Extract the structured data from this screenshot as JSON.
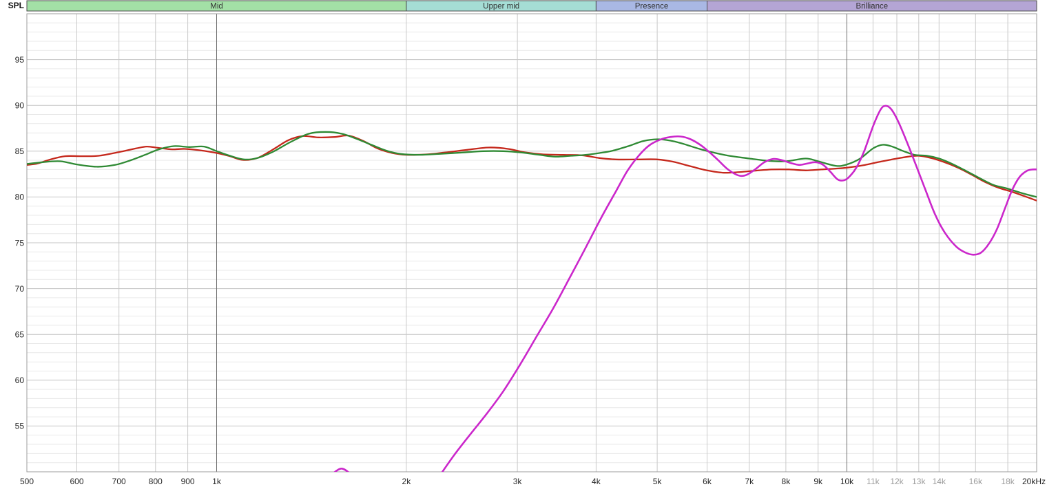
{
  "chart": {
    "spl_label": "SPL"
  },
  "colors": {
    "grid_minor": "#e9e9e9",
    "grid_major": "#c4c4c4",
    "grid_vertical": "#c9c9c9",
    "grid_strong": "#6b6b6b",
    "plot_border": "#9c9c9c",
    "tick_text": "#262626",
    "tick_text_muted": "#9b9b9b",
    "band_border": "#4d4d4d",
    "band_text": "#333333"
  },
  "chart_data": {
    "type": "line",
    "ylabel": "SPL",
    "x_unit": "Hz",
    "x_scale": "log",
    "xlim": [
      500,
      20000
    ],
    "ylim": [
      50,
      100
    ],
    "y_major_step": 5,
    "y_minor_step": 1,
    "grid": true,
    "legend_position": "none",
    "y_tick_labels": [
      55,
      60,
      65,
      70,
      75,
      80,
      85,
      90,
      95
    ],
    "x_ticks": [
      {
        "f": 500,
        "label": "500",
        "muted": false,
        "strong": false
      },
      {
        "f": 600,
        "label": "600",
        "muted": false,
        "strong": false
      },
      {
        "f": 700,
        "label": "700",
        "muted": false,
        "strong": false
      },
      {
        "f": 800,
        "label": "800",
        "muted": false,
        "strong": false
      },
      {
        "f": 900,
        "label": "900",
        "muted": false,
        "strong": false
      },
      {
        "f": 1000,
        "label": "1k",
        "muted": false,
        "strong": true
      },
      {
        "f": 2000,
        "label": "2k",
        "muted": false,
        "strong": false
      },
      {
        "f": 3000,
        "label": "3k",
        "muted": false,
        "strong": false
      },
      {
        "f": 4000,
        "label": "4k",
        "muted": false,
        "strong": false
      },
      {
        "f": 5000,
        "label": "5k",
        "muted": false,
        "strong": false
      },
      {
        "f": 6000,
        "label": "6k",
        "muted": false,
        "strong": false
      },
      {
        "f": 7000,
        "label": "7k",
        "muted": false,
        "strong": false
      },
      {
        "f": 8000,
        "label": "8k",
        "muted": false,
        "strong": false
      },
      {
        "f": 9000,
        "label": "9k",
        "muted": false,
        "strong": false
      },
      {
        "f": 10000,
        "label": "10k",
        "muted": false,
        "strong": true
      },
      {
        "f": 11000,
        "label": "11k",
        "muted": true,
        "strong": false
      },
      {
        "f": 12000,
        "label": "12k",
        "muted": true,
        "strong": false
      },
      {
        "f": 13000,
        "label": "13k",
        "muted": true,
        "strong": false
      },
      {
        "f": 14000,
        "label": "14k",
        "muted": true,
        "strong": false
      },
      {
        "f": 16000,
        "label": "16k",
        "muted": true,
        "strong": false
      },
      {
        "f": 18000,
        "label": "18k",
        "muted": true,
        "strong": false
      },
      {
        "f": 20000,
        "label": "20kHz",
        "muted": false,
        "strong": false
      }
    ],
    "bands": [
      {
        "label": "Mid",
        "from": 500,
        "to": 2000,
        "color": "#a3e0a6"
      },
      {
        "label": "Upper mid",
        "from": 2000,
        "to": 4000,
        "color": "#a5ddd5"
      },
      {
        "label": "Presence",
        "from": 4000,
        "to": 6000,
        "color": "#a9b8e4"
      },
      {
        "label": "Brilliance",
        "from": 6000,
        "to": 20000,
        "color": "#b4a5d5"
      }
    ],
    "series": [
      {
        "name": "red",
        "color": "#c5281c",
        "width": 2.3,
        "segments": [
          [
            [
              500,
              83.5
            ],
            [
              520,
              83.65
            ],
            [
              545,
              84.1
            ],
            [
              575,
              84.45
            ],
            [
              610,
              84.45
            ],
            [
              650,
              84.5
            ],
            [
              700,
              84.9
            ],
            [
              745,
              85.3
            ],
            [
              775,
              85.5
            ],
            [
              810,
              85.35
            ],
            [
              850,
              85.2
            ],
            [
              890,
              85.25
            ],
            [
              940,
              85.1
            ],
            [
              1000,
              84.8
            ],
            [
              1050,
              84.45
            ],
            [
              1100,
              84.05
            ],
            [
              1160,
              84.25
            ],
            [
              1230,
              85.2
            ],
            [
              1300,
              86.2
            ],
            [
              1370,
              86.65
            ],
            [
              1450,
              86.5
            ],
            [
              1540,
              86.55
            ],
            [
              1620,
              86.7
            ],
            [
              1710,
              86.1
            ],
            [
              1800,
              85.3
            ],
            [
              1900,
              84.8
            ],
            [
              2000,
              84.6
            ],
            [
              2150,
              84.65
            ],
            [
              2300,
              84.85
            ],
            [
              2500,
              85.15
            ],
            [
              2700,
              85.4
            ],
            [
              2900,
              85.25
            ],
            [
              3100,
              84.85
            ],
            [
              3300,
              84.65
            ],
            [
              3550,
              84.6
            ],
            [
              3800,
              84.55
            ],
            [
              4050,
              84.25
            ],
            [
              4300,
              84.1
            ],
            [
              4650,
              84.1
            ],
            [
              5000,
              84.1
            ],
            [
              5300,
              83.85
            ],
            [
              5650,
              83.35
            ],
            [
              6000,
              82.9
            ],
            [
              6350,
              82.65
            ],
            [
              6700,
              82.7
            ],
            [
              7100,
              82.85
            ],
            [
              7600,
              83.0
            ],
            [
              8100,
              83.0
            ],
            [
              8600,
              82.9
            ],
            [
              9100,
              83.0
            ],
            [
              9600,
              83.1
            ],
            [
              10000,
              83.2
            ],
            [
              10600,
              83.45
            ],
            [
              11200,
              83.8
            ],
            [
              11900,
              84.15
            ],
            [
              12500,
              84.4
            ],
            [
              13000,
              84.5
            ],
            [
              13600,
              84.25
            ],
            [
              14200,
              83.85
            ],
            [
              15000,
              83.2
            ],
            [
              15800,
              82.4
            ],
            [
              16600,
              81.6
            ],
            [
              17400,
              81.0
            ],
            [
              18200,
              80.6
            ],
            [
              19100,
              80.1
            ],
            [
              20000,
              79.6
            ]
          ]
        ]
      },
      {
        "name": "green",
        "color": "#2f8a34",
        "width": 2.3,
        "segments": [
          [
            [
              500,
              83.6
            ],
            [
              530,
              83.8
            ],
            [
              565,
              83.9
            ],
            [
              600,
              83.55
            ],
            [
              645,
              83.3
            ],
            [
              690,
              83.5
            ],
            [
              730,
              84.0
            ],
            [
              770,
              84.6
            ],
            [
              810,
              85.2
            ],
            [
              855,
              85.55
            ],
            [
              905,
              85.45
            ],
            [
              955,
              85.5
            ],
            [
              1000,
              85.0
            ],
            [
              1050,
              84.5
            ],
            [
              1105,
              84.1
            ],
            [
              1160,
              84.25
            ],
            [
              1230,
              84.95
            ],
            [
              1310,
              86.0
            ],
            [
              1400,
              86.9
            ],
            [
              1490,
              87.1
            ],
            [
              1580,
              86.9
            ],
            [
              1660,
              86.4
            ],
            [
              1760,
              85.7
            ],
            [
              1860,
              85.05
            ],
            [
              1960,
              84.7
            ],
            [
              2100,
              84.6
            ],
            [
              2250,
              84.7
            ],
            [
              2450,
              84.85
            ],
            [
              2650,
              85.0
            ],
            [
              2850,
              85.0
            ],
            [
              3050,
              84.85
            ],
            [
              3250,
              84.6
            ],
            [
              3450,
              84.4
            ],
            [
              3650,
              84.5
            ],
            [
              3850,
              84.6
            ],
            [
              4050,
              84.8
            ],
            [
              4250,
              85.05
            ],
            [
              4500,
              85.55
            ],
            [
              4750,
              86.1
            ],
            [
              5000,
              86.3
            ],
            [
              5250,
              86.15
            ],
            [
              5500,
              85.8
            ],
            [
              5800,
              85.3
            ],
            [
              6100,
              84.9
            ],
            [
              6500,
              84.5
            ],
            [
              7000,
              84.2
            ],
            [
              7500,
              83.95
            ],
            [
              8000,
              83.9
            ],
            [
              8600,
              84.2
            ],
            [
              9000,
              83.9
            ],
            [
              9600,
              83.4
            ],
            [
              10000,
              83.55
            ],
            [
              10500,
              84.2
            ],
            [
              11000,
              85.3
            ],
            [
              11400,
              85.7
            ],
            [
              11800,
              85.5
            ],
            [
              12300,
              85.0
            ],
            [
              12800,
              84.6
            ],
            [
              13400,
              84.5
            ],
            [
              14000,
              84.2
            ],
            [
              14700,
              83.6
            ],
            [
              15500,
              82.8
            ],
            [
              16300,
              82.0
            ],
            [
              17100,
              81.3
            ],
            [
              18000,
              80.9
            ],
            [
              19000,
              80.4
            ],
            [
              20000,
              80.0
            ]
          ]
        ]
      },
      {
        "name": "magenta",
        "color": "#cb27cb",
        "width": 2.6,
        "segments": [
          [
            [
              1500,
              49.3
            ],
            [
              1545,
              50.05
            ],
            [
              1578,
              50.35
            ],
            [
              1612,
              50.05
            ],
            [
              1660,
              49.3
            ]
          ],
          [
            [
              2250,
              49.4
            ],
            [
              2380,
              51.8
            ],
            [
              2520,
              54.0
            ],
            [
              2680,
              56.3
            ],
            [
              2850,
              58.8
            ],
            [
              3030,
              61.7
            ],
            [
              3220,
              64.8
            ],
            [
              3430,
              68.0
            ],
            [
              3640,
              71.3
            ],
            [
              3860,
              74.6
            ],
            [
              4080,
              77.8
            ],
            [
              4300,
              80.6
            ],
            [
              4480,
              82.8
            ],
            [
              4660,
              84.4
            ],
            [
              4850,
              85.6
            ],
            [
              5050,
              86.25
            ],
            [
              5250,
              86.55
            ],
            [
              5450,
              86.6
            ],
            [
              5650,
              86.3
            ],
            [
              5850,
              85.7
            ],
            [
              6050,
              84.9
            ],
            [
              6250,
              84.0
            ],
            [
              6450,
              83.1
            ],
            [
              6650,
              82.5
            ],
            [
              6800,
              82.3
            ],
            [
              6950,
              82.45
            ],
            [
              7150,
              83.0
            ],
            [
              7400,
              83.8
            ],
            [
              7650,
              84.15
            ],
            [
              7900,
              84.0
            ],
            [
              8150,
              83.7
            ],
            [
              8400,
              83.5
            ],
            [
              8650,
              83.65
            ],
            [
              8900,
              83.8
            ],
            [
              9150,
              83.55
            ],
            [
              9400,
              82.8
            ],
            [
              9650,
              81.95
            ],
            [
              9850,
              81.8
            ],
            [
              10050,
              82.1
            ],
            [
              10350,
              83.2
            ],
            [
              10650,
              85.0
            ],
            [
              11000,
              87.7
            ],
            [
              11300,
              89.5
            ],
            [
              11500,
              89.95
            ],
            [
              11750,
              89.6
            ],
            [
              12050,
              88.3
            ],
            [
              12400,
              86.3
            ],
            [
              12800,
              83.9
            ],
            [
              13300,
              80.9
            ],
            [
              13800,
              78.1
            ],
            [
              14300,
              76.1
            ],
            [
              14900,
              74.6
            ],
            [
              15400,
              73.95
            ],
            [
              15850,
              73.7
            ],
            [
              16300,
              73.9
            ],
            [
              16800,
              74.9
            ],
            [
              17300,
              76.5
            ],
            [
              17800,
              78.7
            ],
            [
              18300,
              80.8
            ],
            [
              18800,
              82.2
            ],
            [
              19300,
              82.85
            ],
            [
              19700,
              83.0
            ],
            [
              20000,
              83.0
            ]
          ]
        ]
      }
    ]
  }
}
